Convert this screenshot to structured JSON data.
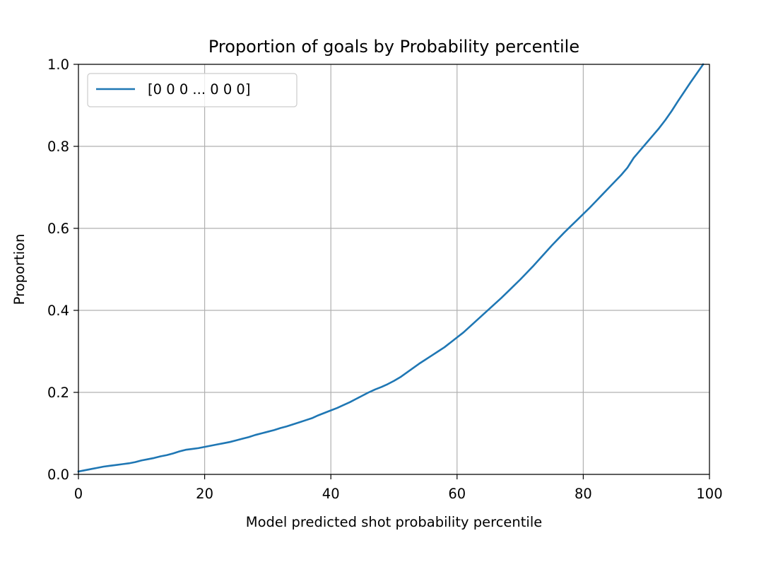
{
  "chart_data": {
    "type": "line",
    "title": "Proportion of goals by Probability percentile",
    "xlabel": "Model predicted shot probability percentile",
    "ylabel": "Proportion",
    "xlim": [
      0,
      100
    ],
    "ylim": [
      0,
      1.0
    ],
    "xticks": [
      0,
      20,
      40,
      60,
      80,
      100
    ],
    "xtick_labels": [
      "0",
      "20",
      "40",
      "60",
      "80",
      "100"
    ],
    "yticks": [
      0.0,
      0.2,
      0.4,
      0.6,
      0.8,
      1.0
    ],
    "ytick_labels": [
      "0.0",
      "0.2",
      "0.4",
      "0.6",
      "0.8",
      "1.0"
    ],
    "grid": true,
    "legend_position": "upper-left",
    "series": [
      {
        "name": "[0 0 0 ... 0 0 0]",
        "color": "#1f77b4",
        "x": [
          0,
          1,
          2,
          3,
          4,
          5,
          6,
          7,
          8,
          9,
          10,
          11,
          12,
          13,
          14,
          15,
          16,
          17,
          18,
          19,
          20,
          21,
          22,
          23,
          24,
          25,
          26,
          27,
          28,
          29,
          30,
          31,
          32,
          33,
          34,
          35,
          36,
          37,
          38,
          39,
          40,
          41,
          42,
          43,
          44,
          45,
          46,
          47,
          48,
          49,
          50,
          51,
          52,
          53,
          54,
          55,
          56,
          57,
          58,
          59,
          60,
          61,
          62,
          63,
          64,
          65,
          66,
          67,
          68,
          69,
          70,
          71,
          72,
          73,
          74,
          75,
          76,
          77,
          78,
          79,
          80,
          81,
          82,
          83,
          84,
          85,
          86,
          87,
          88,
          89,
          90,
          91,
          92,
          93,
          94,
          95,
          96,
          97,
          98,
          99
        ],
        "y": [
          0.007,
          0.01,
          0.013,
          0.016,
          0.019,
          0.021,
          0.023,
          0.025,
          0.027,
          0.03,
          0.034,
          0.037,
          0.04,
          0.044,
          0.047,
          0.051,
          0.056,
          0.06,
          0.062,
          0.064,
          0.067,
          0.07,
          0.073,
          0.076,
          0.079,
          0.083,
          0.087,
          0.091,
          0.096,
          0.1,
          0.104,
          0.108,
          0.113,
          0.117,
          0.122,
          0.127,
          0.132,
          0.137,
          0.144,
          0.15,
          0.156,
          0.162,
          0.169,
          0.176,
          0.184,
          0.192,
          0.2,
          0.207,
          0.213,
          0.22,
          0.228,
          0.237,
          0.248,
          0.259,
          0.27,
          0.28,
          0.29,
          0.3,
          0.31,
          0.322,
          0.334,
          0.346,
          0.36,
          0.374,
          0.388,
          0.402,
          0.416,
          0.43,
          0.445,
          0.46,
          0.475,
          0.491,
          0.507,
          0.524,
          0.541,
          0.558,
          0.574,
          0.59,
          0.605,
          0.62,
          0.635,
          0.65,
          0.666,
          0.682,
          0.698,
          0.714,
          0.73,
          0.748,
          0.772,
          0.79,
          0.808,
          0.826,
          0.844,
          0.864,
          0.886,
          0.91,
          0.933,
          0.956,
          0.978,
          1.0
        ]
      }
    ]
  }
}
